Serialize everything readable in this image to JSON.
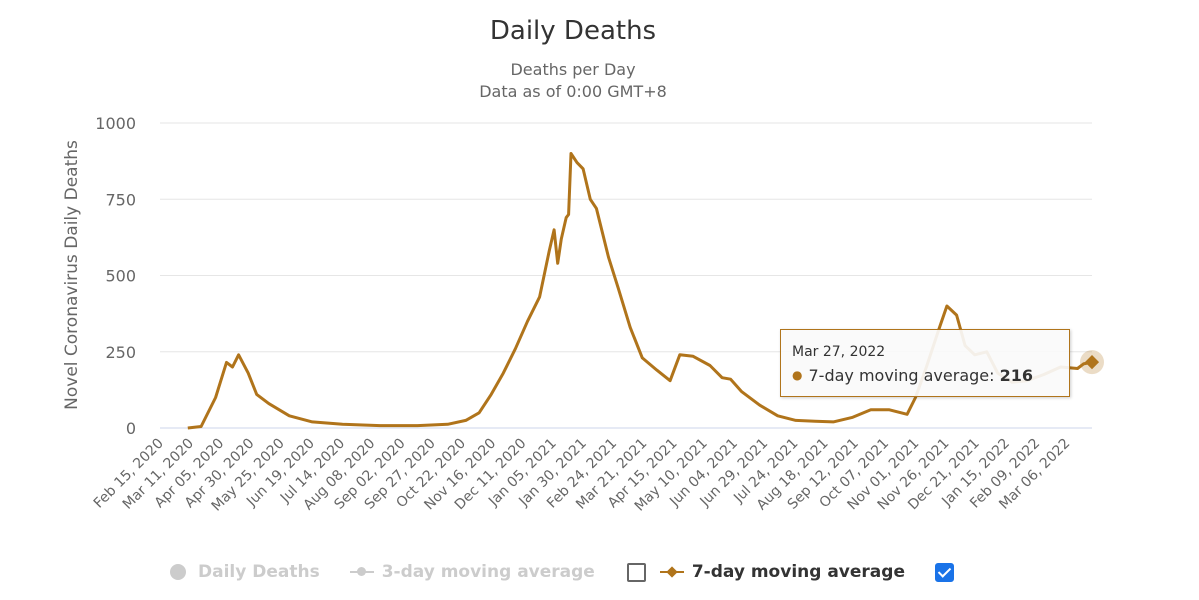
{
  "chart_data": {
    "type": "line",
    "title": "Daily Deaths",
    "subtitle": [
      "Deaths per Day",
      "Data as of 0:00 GMT+8"
    ],
    "ylabel": "Novel Coronavirus Daily Deaths",
    "xlabel": "",
    "ylim": [
      0,
      1000
    ],
    "yticks": [
      0,
      250,
      500,
      750,
      1000
    ],
    "grid": true,
    "x_range": [
      "2020-02-15",
      "2022-03-27"
    ],
    "xtick_labels": [
      "Feb 15, 2020",
      "Mar 11, 2020",
      "Apr 05, 2020",
      "Apr 30, 2020",
      "May 25, 2020",
      "Jun 19, 2020",
      "Jul 14, 2020",
      "Aug 08, 2020",
      "Sep 02, 2020",
      "Sep 27, 2020",
      "Oct 22, 2020",
      "Nov 16, 2020",
      "Dec 11, 2020",
      "Jan 05, 2021",
      "Jan 30, 2021",
      "Feb 24, 2021",
      "Mar 21, 2021",
      "Apr 15, 2021",
      "May 10, 2021",
      "Jun 04, 2021",
      "Jun 29, 2021",
      "Jul 24, 2021",
      "Aug 18, 2021",
      "Sep 12, 2021",
      "Oct 07, 2021",
      "Nov 01, 2021",
      "Nov 26, 2021",
      "Dec 21, 2021",
      "Jan 15, 2022",
      "Feb 09, 2022",
      "Mar 06, 2022"
    ],
    "legend": [
      {
        "label": "Daily Deaths",
        "visible": false,
        "color": "#cccccc",
        "symbol": "circle"
      },
      {
        "label": "3-day moving average",
        "visible": false,
        "color": "#cccccc",
        "symbol": "line-circle",
        "checked": false
      },
      {
        "label": "7-day moving average",
        "visible": true,
        "color": "#b0741b",
        "symbol": "line-diamond",
        "checked": true
      }
    ],
    "legend_position": "bottom-center",
    "series": [
      {
        "name": "7-day moving average",
        "color": "#b0741b",
        "x": [
          "2020-03-09",
          "2020-03-20",
          "2020-04-01",
          "2020-04-10",
          "2020-04-15",
          "2020-04-20",
          "2020-04-28",
          "2020-05-05",
          "2020-05-15",
          "2020-06-01",
          "2020-06-20",
          "2020-07-15",
          "2020-08-15",
          "2020-09-15",
          "2020-10-10",
          "2020-10-25",
          "2020-11-05",
          "2020-11-15",
          "2020-11-25",
          "2020-12-05",
          "2020-12-15",
          "2020-12-25",
          "2021-01-02",
          "2021-01-06",
          "2021-01-09",
          "2021-01-12",
          "2021-01-16",
          "2021-01-18",
          "2021-01-20",
          "2021-01-25",
          "2021-01-30",
          "2021-02-05",
          "2021-02-10",
          "2021-02-20",
          "2021-02-28",
          "2021-03-10",
          "2021-03-20",
          "2021-04-01",
          "2021-04-12",
          "2021-04-20",
          "2021-05-01",
          "2021-05-15",
          "2021-05-25",
          "2021-06-01",
          "2021-06-10",
          "2021-06-25",
          "2021-07-10",
          "2021-07-25",
          "2021-08-10",
          "2021-08-25",
          "2021-09-10",
          "2021-09-25",
          "2021-10-10",
          "2021-10-25",
          "2021-11-01",
          "2021-11-10",
          "2021-11-20",
          "2021-11-27",
          "2021-12-05",
          "2021-12-12",
          "2021-12-20",
          "2021-12-30",
          "2022-01-08",
          "2022-01-20",
          "2022-02-01",
          "2022-02-15",
          "2022-03-01",
          "2022-03-15",
          "2022-03-20",
          "2022-03-27"
        ],
        "y": [
          0,
          5,
          100,
          215,
          200,
          240,
          180,
          110,
          80,
          40,
          20,
          12,
          8,
          8,
          12,
          25,
          50,
          110,
          180,
          260,
          350,
          430,
          580,
          650,
          540,
          620,
          690,
          700,
          900,
          870,
          850,
          750,
          720,
          560,
          460,
          330,
          230,
          190,
          155,
          240,
          235,
          205,
          165,
          160,
          120,
          75,
          40,
          25,
          22,
          20,
          35,
          60,
          60,
          45,
          100,
          200,
          320,
          400,
          370,
          270,
          240,
          250,
          180,
          150,
          155,
          175,
          200,
          195,
          210,
          216
        ]
      }
    ],
    "tooltip": {
      "date": "Mar 27, 2022",
      "series_label": "7-day moving average",
      "value": "216"
    }
  }
}
